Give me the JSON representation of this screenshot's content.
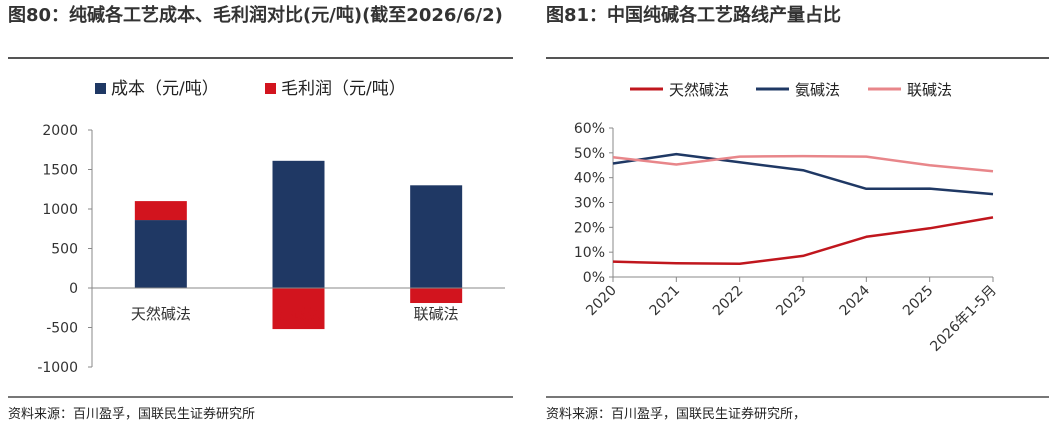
{
  "left": {
    "title": "图80：纯碱各工艺成本、毛利润对比(元/吨)(截至2026/6/2)",
    "source": "资料来源：百川盈孚，国联民生证券研究所",
    "colors": {
      "cost": "#1f3864",
      "profit": "#d2141e",
      "category_highlight": "#d2141e"
    }
  },
  "right": {
    "title": "图81：中国纯碱各工艺路线产量占比",
    "source": "资料来源：百川盈孚，国联民生证券研究所，",
    "colors": {
      "s0": "#c0161d",
      "s1": "#1f3864",
      "s2": "#e8868a"
    }
  },
  "chart_data": [
    {
      "type": "bar",
      "stacked": true,
      "categories": [
        "天然碱法",
        "氨碱法",
        "联碱法"
      ],
      "series": [
        {
          "name": "成本（元/吨）",
          "values": [
            860,
            1610,
            1300
          ]
        },
        {
          "name": "毛利润（元/吨）",
          "values": [
            240,
            -520,
            -190
          ]
        }
      ],
      "ylim": [
        -1000,
        2000
      ],
      "yticks": [
        -1000,
        -500,
        0,
        500,
        1000,
        1500,
        2000
      ],
      "legend": "top-left",
      "grid": false
    },
    {
      "type": "line",
      "x": [
        "2020",
        "2021",
        "2022",
        "2023",
        "2024",
        "2025",
        "2026年1-5月"
      ],
      "series": [
        {
          "name": "天然碱法",
          "values": [
            6.2,
            5.5,
            5.3,
            8.5,
            16.2,
            19.6,
            24.0
          ]
        },
        {
          "name": "氨碱法",
          "values": [
            45.7,
            49.5,
            46.2,
            43.0,
            35.5,
            35.6,
            33.4
          ]
        },
        {
          "name": "联碱法",
          "values": [
            48.2,
            45.3,
            48.5,
            48.7,
            48.5,
            45.0,
            42.6
          ]
        }
      ],
      "ylim": [
        0,
        60
      ],
      "yticks": [
        "0%",
        "10%",
        "20%",
        "30%",
        "40%",
        "50%",
        "60%"
      ],
      "legend": "top",
      "grid": false
    }
  ]
}
